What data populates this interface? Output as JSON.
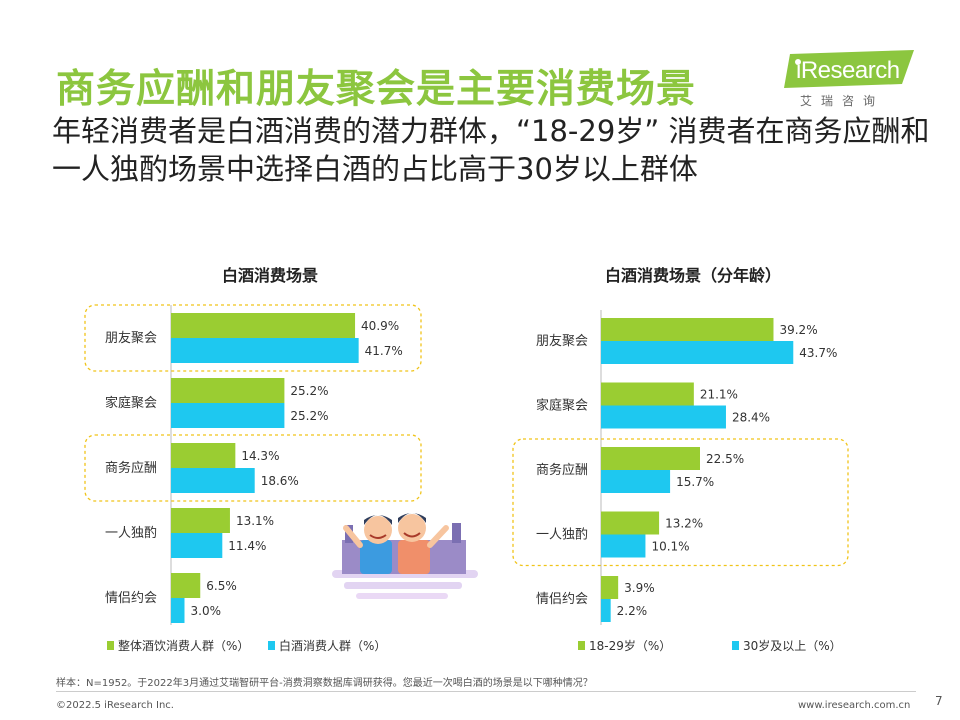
{
  "header": {
    "title": "商务应酬和朋友聚会是主要消费场景",
    "subtitle": "年轻消费者是白酒消费的潜力群体，“18-29岁” 消费者在商务应酬和一人独酌场景中选择白酒的占比高于30岁以上群体"
  },
  "logo": {
    "name": "iResearch",
    "sub": "艾瑞咨询"
  },
  "colors": {
    "green": "#9acd32",
    "blue": "#1ec8f0",
    "highlight": "#f0c419",
    "title_green": "#8cc63f"
  },
  "chart_data": [
    {
      "type": "bar",
      "orientation": "horizontal",
      "title": "白酒消费场景",
      "categories": [
        "朋友聚会",
        "家庭聚会",
        "商务应酬",
        "一人独酌",
        "情侣约会"
      ],
      "series": [
        {
          "name": "整体酒饮消费人群（%）",
          "values": [
            40.9,
            25.2,
            14.3,
            13.1,
            6.5
          ],
          "labels": [
            "40.9%",
            "25.2%",
            "14.3%",
            "13.1%",
            "6.5%"
          ]
        },
        {
          "name": "白酒消费人群（%）",
          "values": [
            41.7,
            25.2,
            18.6,
            11.4,
            3.0
          ],
          "labels": [
            "41.7%",
            "25.2%",
            "18.6%",
            "11.4%",
            "3.0%"
          ]
        }
      ],
      "highlighted": [
        "朋友聚会",
        "商务应酬"
      ],
      "legend": "bottom"
    },
    {
      "type": "bar",
      "orientation": "horizontal",
      "title": "白酒消费场景（分年龄）",
      "categories": [
        "朋友聚会",
        "家庭聚会",
        "商务应酬",
        "一人独酌",
        "情侣约会"
      ],
      "series": [
        {
          "name": "18-29岁（%）",
          "values": [
            39.2,
            21.1,
            22.5,
            13.2,
            3.9
          ],
          "labels": [
            "39.2%",
            "21.1%",
            "22.5%",
            "13.2%",
            "3.9%"
          ]
        },
        {
          "name": "30岁及以上（%）",
          "values": [
            43.7,
            28.4,
            15.7,
            10.1,
            2.2
          ],
          "labels": [
            "43.7%",
            "28.4%",
            "15.7%",
            "10.1%",
            "2.2%"
          ]
        }
      ],
      "highlighted": [
        "商务应酬",
        "一人独酌"
      ],
      "legend": "bottom"
    }
  ],
  "footer": {
    "note": "样本：N=1952。于2022年3月通过艾瑞智研平台-消费洞察数据库调研获得。您最近一次喝白酒的场景是以下哪种情况？",
    "copyright": "©2022.5 iResearch Inc.",
    "website": "www.iresearch.com.cn",
    "page": "7"
  }
}
